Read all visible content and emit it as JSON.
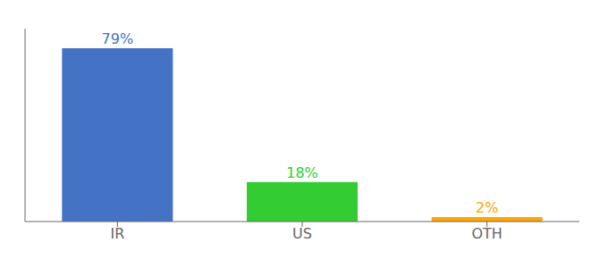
{
  "chart_data": {
    "type": "bar",
    "categories": [
      "IR",
      "US",
      "OTH"
    ],
    "values": [
      79,
      18,
      2
    ],
    "value_labels": [
      "79%",
      "18%",
      "2%"
    ],
    "data_labels": true,
    "colors": [
      "#4472C4",
      "#33CC33",
      "#FFA500"
    ],
    "ylim": [
      0,
      88
    ],
    "tick_labels": "x"
  }
}
